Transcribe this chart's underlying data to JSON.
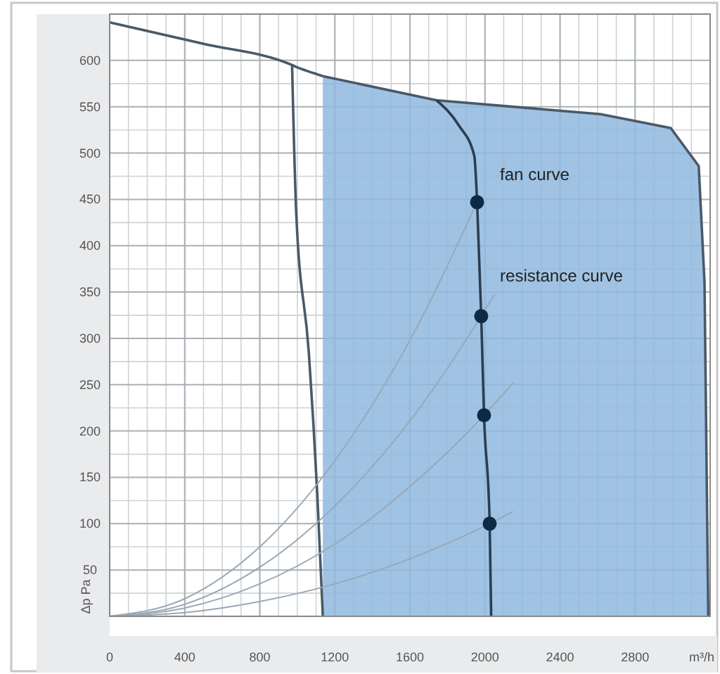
{
  "chart_data": {
    "type": "line",
    "xlabel": "m³/h",
    "ylabel": "Δp Pa",
    "xlim": [
      0,
      3200
    ],
    "ylim": [
      0,
      650
    ],
    "xticks": [
      0,
      400,
      800,
      1200,
      1600,
      2000,
      2400,
      2800
    ],
    "yticks": [
      50,
      100,
      150,
      200,
      250,
      300,
      350,
      400,
      450,
      500,
      550,
      600
    ],
    "grid": true,
    "series": [
      {
        "type": "area",
        "color": "#8fb9df",
        "x": [
          1136,
          1741,
          2616,
          2990,
          3139,
          3170,
          3190
        ],
        "values": [
          583,
          557,
          542,
          527,
          486,
          360,
          0
        ]
      },
      {
        "color": "#4a5968",
        "x": [
          0,
          500,
          972,
          994,
          1061,
          1106,
          1136
        ],
        "values": [
          641,
          618,
          595,
          593,
          588,
          585,
          583
        ]
      },
      {
        "color": "#4a5968",
        "x": [
          972,
          994,
          1061,
          1106,
          1136
        ],
        "values": [
          595,
          436,
          285,
          133,
          0
        ]
      },
      {
        "color": "#9aa8b5",
        "x": [
          0,
          400,
          800,
          1200,
          1600,
          1958
        ],
        "values": [
          0,
          19,
          75,
          168,
          298,
          447
        ]
      },
      {
        "color": "#9aa8b5",
        "x": [
          0,
          400,
          800,
          1200,
          1600,
          1980,
          2050
        ],
        "values": [
          0,
          13,
          53,
          119,
          211,
          324,
          347
        ]
      },
      {
        "color": "#9aa8b5",
        "x": [
          0,
          400,
          800,
          1200,
          1600,
          1995,
          2150
        ],
        "values": [
          0,
          9,
          35,
          78,
          140,
          217,
          252
        ]
      },
      {
        "color": "#9aa8b5",
        "x": [
          0,
          400,
          800,
          1200,
          1600,
          2025,
          2150
        ],
        "values": [
          0,
          4,
          16,
          35,
          62,
          100,
          113
        ]
      },
      {
        "color": "#2c3e50",
        "x": [
          1741,
          1860,
          1943,
          1958,
          1980,
          1995,
          2025,
          2033
        ],
        "values": [
          557,
          530,
          497,
          447,
          324,
          217,
          100,
          0
        ]
      },
      {
        "type": "scatter",
        "color": "#0d2a45",
        "marker": "circle",
        "x": [
          1958,
          1980,
          1995,
          2025
        ],
        "values": [
          447,
          324,
          217,
          100
        ]
      }
    ],
    "annotations": [
      "fan curve",
      "resistance curve"
    ]
  }
}
